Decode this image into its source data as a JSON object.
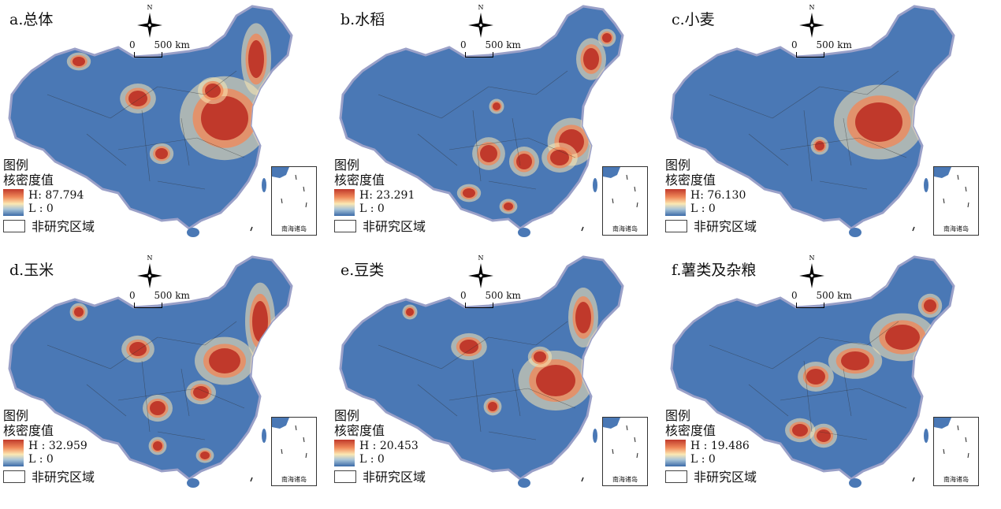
{
  "legend_title": "图例",
  "legend_subtitle": "核密度值",
  "non_study": "非研究区域",
  "north_label": "N",
  "scale_zero": "0",
  "scale_value": "500 km",
  "inset_label": "南海诸岛",
  "colors": {
    "high": "#c0392b",
    "mid": "#fbe8b3",
    "low": "#3b6aa8",
    "base": "#4a78b5",
    "border": "#2b2b2b"
  },
  "panels": [
    {
      "title": "a.总体",
      "high": "H: 87.794",
      "low": "L : 0"
    },
    {
      "title": "b.水稻",
      "high": "H: 23.291",
      "low": "L : 0"
    },
    {
      "title": "c.小麦",
      "high": "H: 76.130",
      "low": "L : 0"
    },
    {
      "title": "d.玉米",
      "high": "H : 32.959",
      "low": "L : 0"
    },
    {
      "title": "e.豆类",
      "high": "H : 20.453",
      "low": "L : 0"
    },
    {
      "title": "f.薯类及杂粮",
      "high": "H : 19.486",
      "low": "L : 0"
    }
  ]
}
